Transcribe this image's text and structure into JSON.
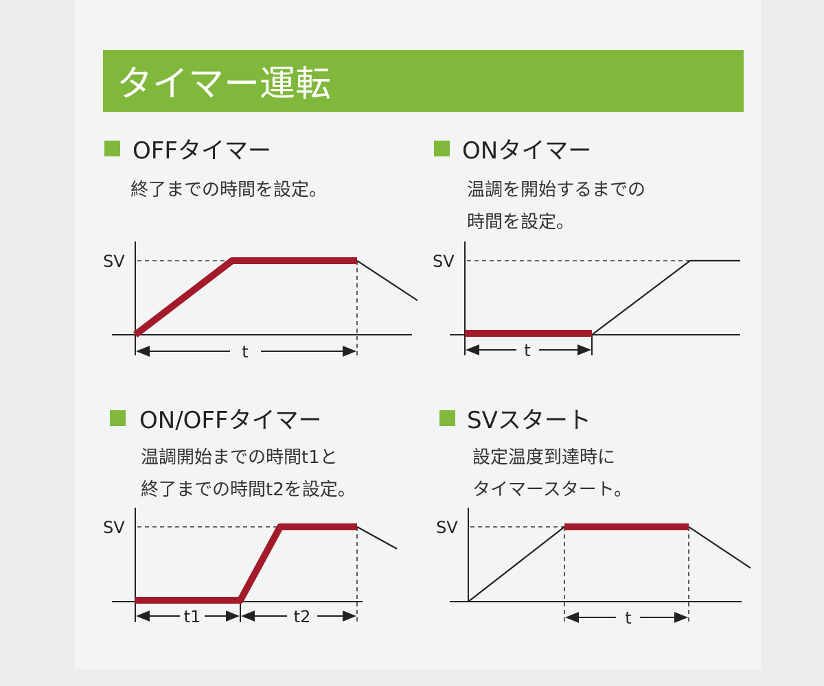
{
  "title": "タイマー運転",
  "colors": {
    "accent_green": "#80b83c",
    "line_red": "#a31a2b",
    "line_black": "#222222"
  },
  "sections": [
    {
      "heading": "OFFタイマー",
      "desc": [
        "終了までの時間を設定。"
      ],
      "sv": "SV",
      "intervals": [
        "t"
      ]
    },
    {
      "heading": "ONタイマー",
      "desc": [
        "温調を開始するまでの",
        "時間を設定。"
      ],
      "sv": "SV",
      "intervals": [
        "t"
      ]
    },
    {
      "heading": "ON/OFFタイマー",
      "desc": [
        "温調開始までの時間t1と",
        "終了までの時間t2を設定。"
      ],
      "sv": "SV",
      "intervals": [
        "t1",
        "t2"
      ]
    },
    {
      "heading": "SVスタート",
      "desc": [
        "設定温度到達時に",
        "タイマースタート。"
      ],
      "sv": "SV",
      "intervals": [
        "t"
      ]
    }
  ]
}
